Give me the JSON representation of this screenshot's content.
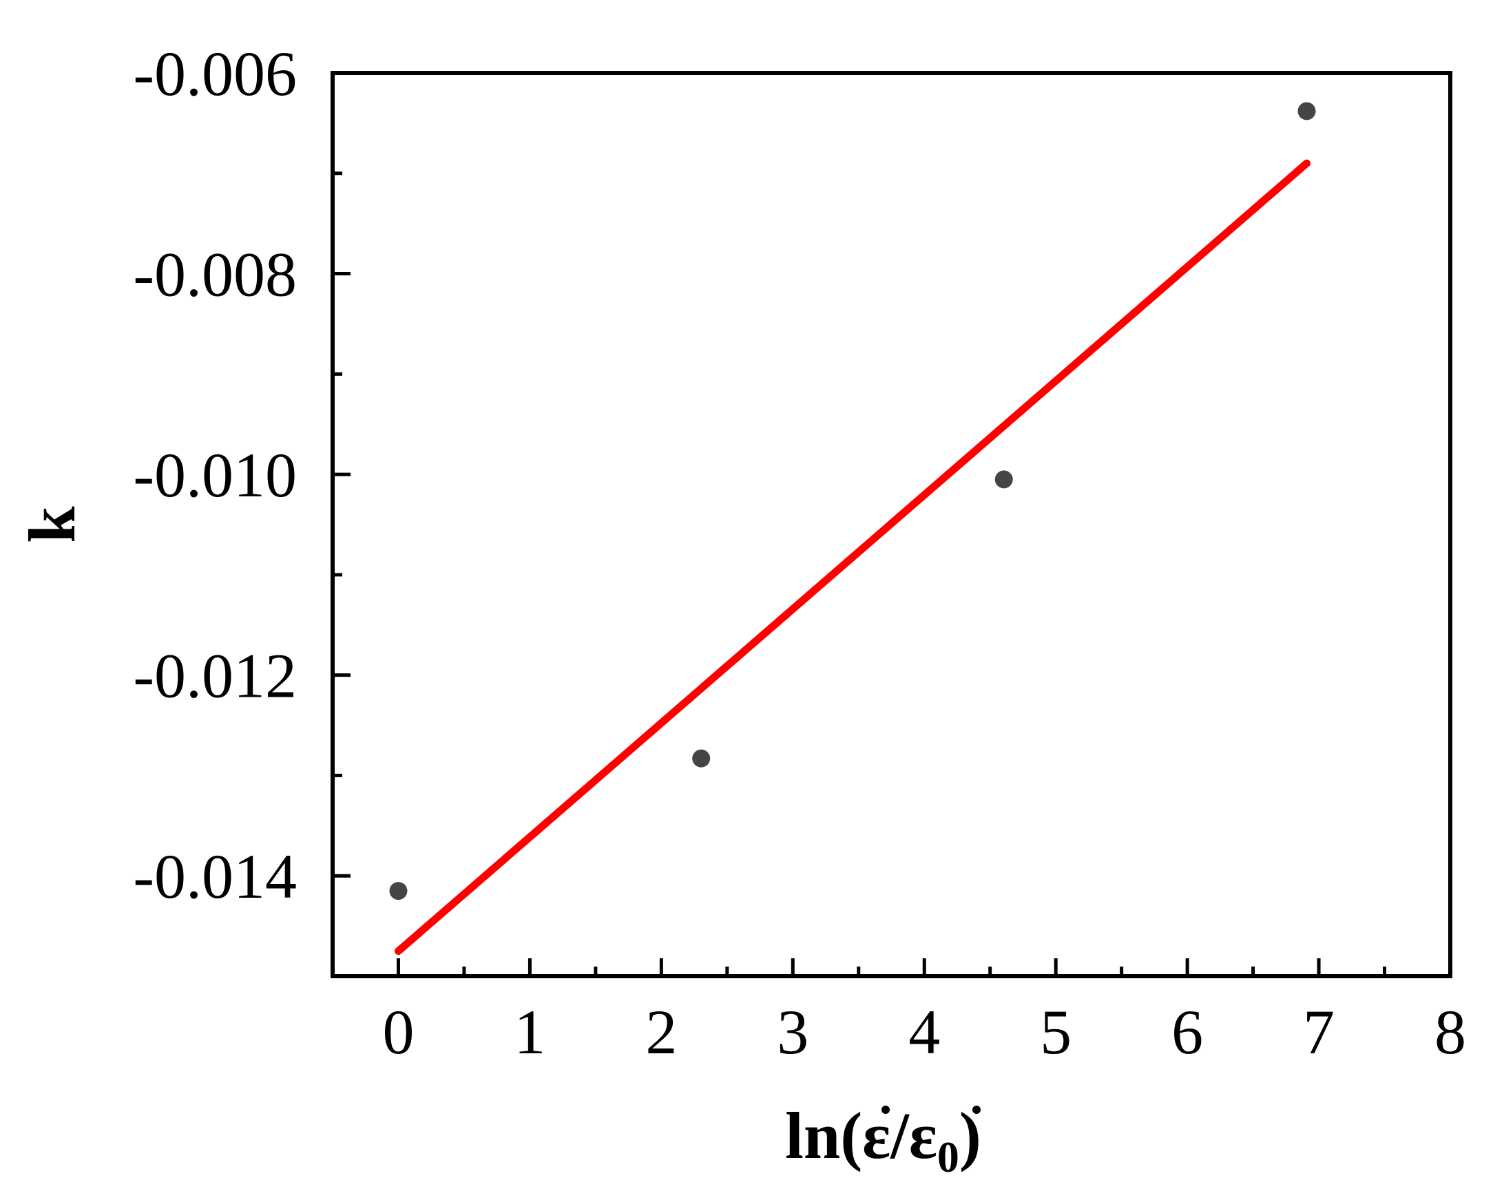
{
  "chart_data": {
    "type": "scatter",
    "title": "",
    "xlabel": {
      "prefix": "ln(",
      "numerator": "ε",
      "slash": "/",
      "denominator": "ε",
      "subscript": "0",
      "suffix": ")"
    },
    "ylabel": "k",
    "xlim": [
      -0.5,
      8
    ],
    "ylim": [
      -0.015,
      -0.006
    ],
    "x_ticks": [
      0,
      1,
      2,
      3,
      4,
      5,
      6,
      7,
      8
    ],
    "x_tick_labels": [
      "0",
      "1",
      "2",
      "3",
      "4",
      "5",
      "6",
      "7",
      "8"
    ],
    "y_ticks": [
      -0.014,
      -0.012,
      -0.01,
      -0.008,
      -0.006
    ],
    "y_tick_labels": [
      "-0.014",
      "-0.012",
      "-0.010",
      "-0.008",
      "-0.006"
    ],
    "grid": false,
    "legend": "none",
    "series": [
      {
        "type": "scatter",
        "color": "#454545",
        "points": [
          {
            "x": 0,
            "y": -0.01415
          },
          {
            "x": 2.303,
            "y": -0.01283
          },
          {
            "x": 4.605,
            "y": -0.01005
          },
          {
            "x": 6.908,
            "y": -0.00638
          }
        ]
      },
      {
        "type": "line",
        "color": "#ff0000",
        "points": [
          {
            "x": 0,
            "y": -0.01475
          },
          {
            "x": 6.908,
            "y": -0.0069
          }
        ]
      }
    ]
  }
}
